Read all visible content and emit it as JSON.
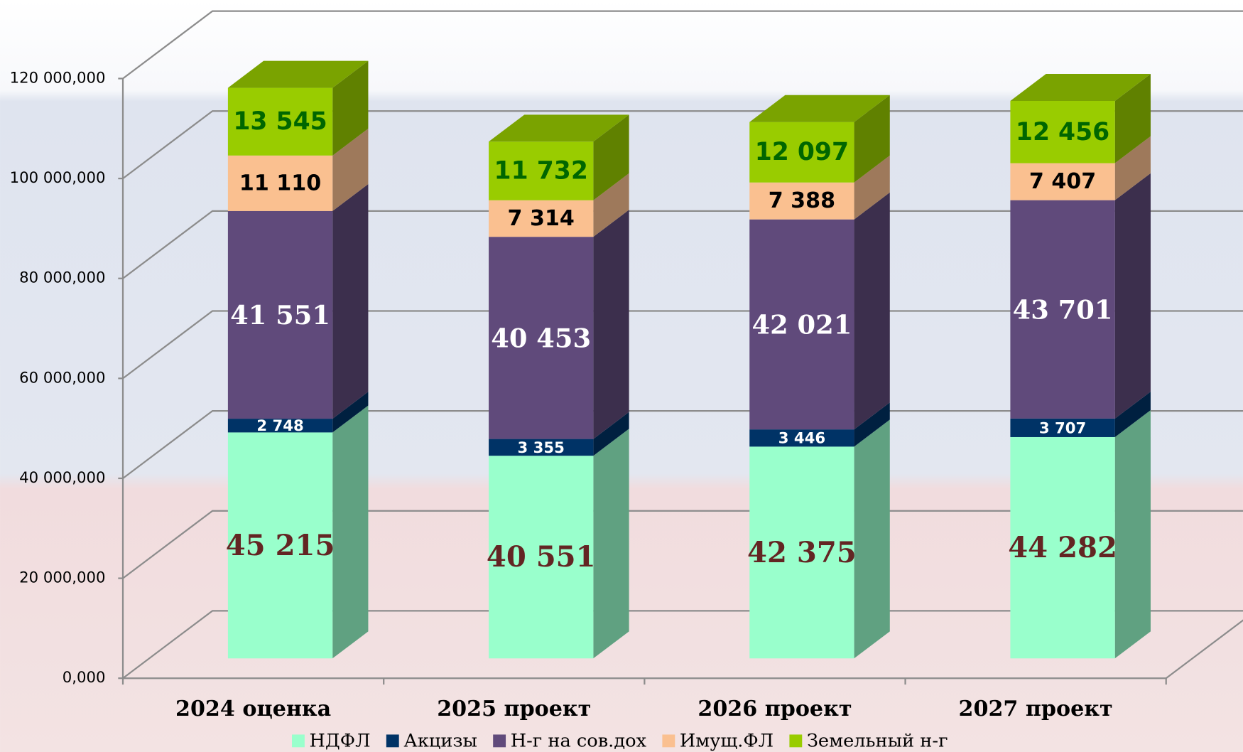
{
  "chart_data": {
    "type": "bar3d_stacked",
    "categories": [
      "2024 оценка",
      "2025 проект",
      "2026 проект",
      "2027 проект"
    ],
    "series": [
      {
        "name": "НДФЛ",
        "color": "#99ffcc",
        "label_color": "#632523",
        "values": [
          45215000,
          40551000,
          42375000,
          44282000
        ],
        "value_labels": [
          "45 215",
          "40 551",
          "42 375",
          "44 282"
        ]
      },
      {
        "name": "Акцизы",
        "color": "#003366",
        "label_color": "#ffffff",
        "values": [
          2748000,
          3355000,
          3446000,
          3707000
        ],
        "value_labels": [
          "2 748",
          "3 355",
          "3 446",
          "3 707"
        ]
      },
      {
        "name": "Н-г на сов.дох",
        "color": "#604a7b",
        "label_color": "#ffffff",
        "values": [
          41551000,
          40453000,
          42021000,
          43701000
        ],
        "value_labels": [
          "41 551",
          "40 453",
          "42 021",
          "43 701"
        ]
      },
      {
        "name": "Имущ.ФЛ",
        "color": "#fac090",
        "label_color": "#000000",
        "values": [
          11110000,
          7314000,
          7388000,
          7407000
        ],
        "value_labels": [
          "11 110",
          "7 314",
          "7 388",
          "7 407"
        ]
      },
      {
        "name": "Земельный н-г",
        "color": "#99cc00",
        "label_color": "#006600",
        "values": [
          13545000,
          11732000,
          12097000,
          12456000
        ],
        "value_labels": [
          "13 545",
          "11 732",
          "12 097",
          "12 456"
        ]
      }
    ],
    "ylim": [
      0,
      120000000
    ],
    "yticks": [
      {
        "value": 0,
        "label": "0,000"
      },
      {
        "value": 20000000,
        "label": "20 000,000"
      },
      {
        "value": 40000000,
        "label": "40 000,000"
      },
      {
        "value": 60000000,
        "label": "60 000,000"
      },
      {
        "value": 80000000,
        "label": "80 000,000"
      },
      {
        "value": 100000000,
        "label": "100 000,000"
      },
      {
        "value": 120000000,
        "label": "120 000,000"
      }
    ],
    "grid": true,
    "legend": "bottom"
  }
}
